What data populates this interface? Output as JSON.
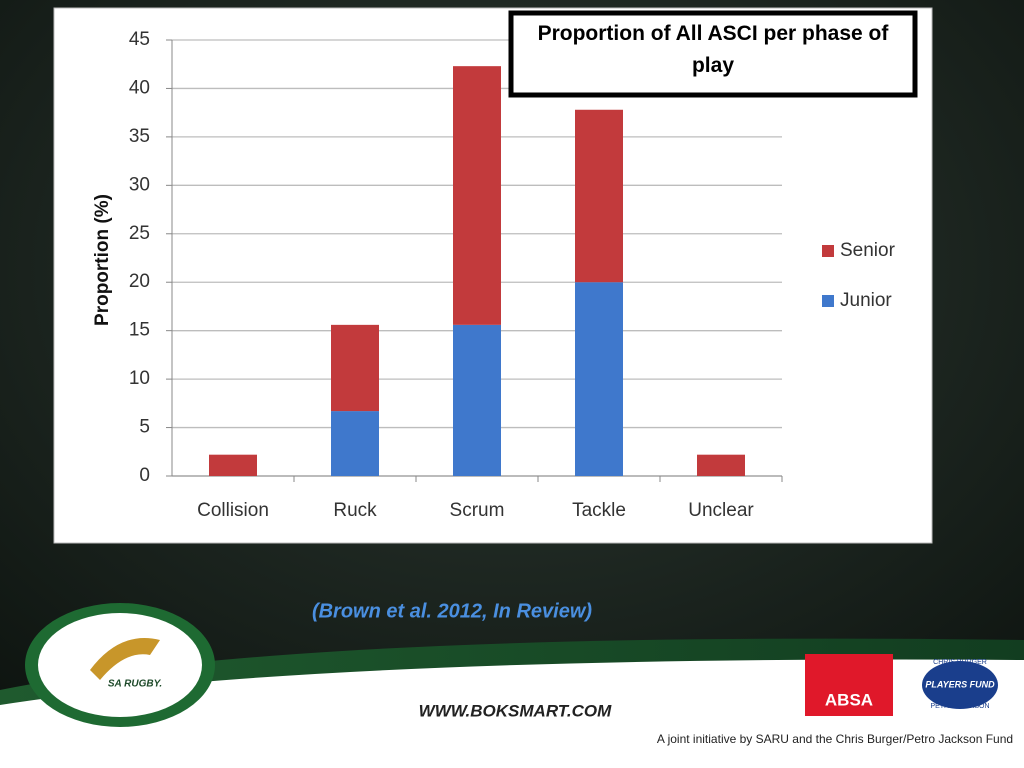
{
  "chart_data": {
    "type": "stacked_bar",
    "title": "Proportion of All ASCI per phase of play",
    "y_label": "Proportion  (%)",
    "categories": [
      "Collision",
      "Ruck",
      "Scrum",
      "Tackle",
      "Unclear"
    ],
    "series": [
      {
        "name": "Junior",
        "color": "#3f78cc",
        "values": [
          0,
          6.7,
          15.6,
          20,
          0
        ]
      },
      {
        "name": "Senior",
        "color": "#c23a3c",
        "values": [
          2.2,
          8.9,
          26.7,
          17.8,
          2.2
        ]
      }
    ],
    "ylim": [
      0,
      45
    ],
    "yticks": [
      0,
      5,
      10,
      15,
      20,
      25,
      30,
      35,
      40,
      45
    ],
    "grid": true,
    "legend": "right"
  },
  "citation": "(Brown et al. 2012, In Review)",
  "footer": {
    "website": "WWW.BOKSMART.COM",
    "tagline": "A joint initiative by SARU and the Chris Burger/Petro Jackson Fund",
    "sa_rugby": "SA RUGBY.",
    "absa": "ABSA",
    "fund_top": "CHRIS BURGER",
    "fund_name": "PLAYERS FUND",
    "fund_bottom": "PETRO JACKSON"
  }
}
